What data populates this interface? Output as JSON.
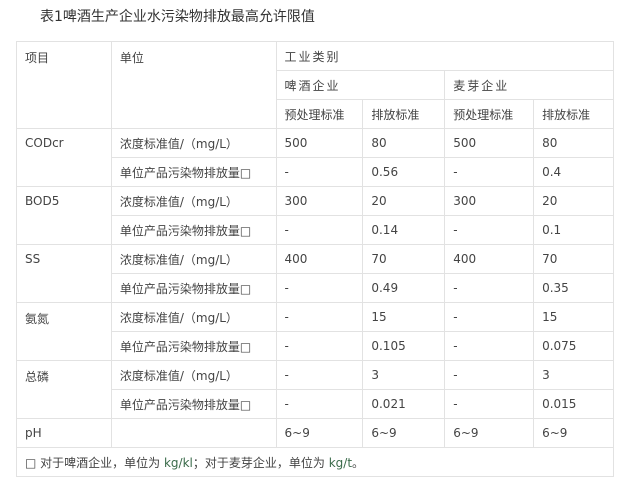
{
  "title": "表1啤酒生产企业水污染物排放最高允许限值",
  "header": {
    "item": "项目",
    "unit": "单位",
    "category": "工业类别",
    "beer": "啤酒企业",
    "malt": "麦芽企业",
    "pre": "预处理标准",
    "emit": "排放标准"
  },
  "rows": [
    {
      "item": "CODcr",
      "conc": {
        "unit": "浓度标准值/（mg/L）",
        "v": [
          "500",
          "80",
          "500",
          "80"
        ]
      },
      "load": {
        "unit": "单位产品污染物排放量□",
        "v": [
          "-",
          "0.56",
          "-",
          "0.4"
        ]
      }
    },
    {
      "item": "BOD5",
      "conc": {
        "unit": "浓度标准值/（mg/L）",
        "v": [
          "300",
          "20",
          "300",
          "20"
        ]
      },
      "load": {
        "unit": "单位产品污染物排放量□",
        "v": [
          "-",
          "0.14",
          "-",
          "0.1"
        ]
      }
    },
    {
      "item": "SS",
      "conc": {
        "unit": "浓度标准值/（mg/L）",
        "v": [
          "400",
          "70",
          "400",
          "70"
        ]
      },
      "load": {
        "unit": "单位产品污染物排放量□",
        "v": [
          "-",
          "0.49",
          "-",
          "0.35"
        ]
      }
    },
    {
      "item": "氨氮",
      "conc": {
        "unit": "浓度标准值/（mg/L）",
        "v": [
          "-",
          "15",
          "-",
          "15"
        ]
      },
      "load": {
        "unit": "单位产品污染物排放量□",
        "v": [
          "-",
          "0.105",
          "-",
          "0.075"
        ]
      }
    },
    {
      "item": "总磷",
      "conc": {
        "unit": "浓度标准值/（mg/L）",
        "v": [
          "-",
          "3",
          "-",
          "3"
        ]
      },
      "load": {
        "unit": "单位产品污染物排放量□",
        "v": [
          "-",
          "0.021",
          "-",
          "0.015"
        ]
      }
    }
  ],
  "ph": {
    "item": "pH",
    "v": [
      "6~9",
      "6~9",
      "6~9",
      "6~9"
    ]
  },
  "footnote": {
    "a": "□ 对于啤酒企业，单位为 ",
    "b": "kg/kl",
    "c": "；对于麦芽企业，单位为 ",
    "d": "kg/t",
    "e": "。"
  }
}
